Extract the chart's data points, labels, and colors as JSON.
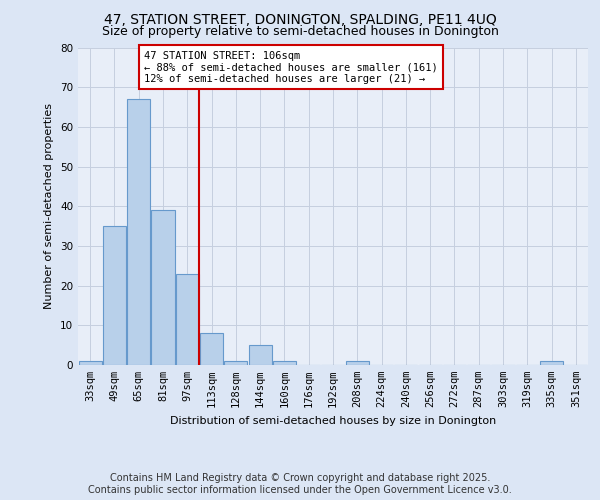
{
  "title1": "47, STATION STREET, DONINGTON, SPALDING, PE11 4UQ",
  "title2": "Size of property relative to semi-detached houses in Donington",
  "xlabel": "Distribution of semi-detached houses by size in Donington",
  "ylabel": "Number of semi-detached properties",
  "annotation_title": "47 STATION STREET: 106sqm",
  "annotation_line1": "← 88% of semi-detached houses are smaller (161)",
  "annotation_line2": "12% of semi-detached houses are larger (21) →",
  "footer1": "Contains HM Land Registry data © Crown copyright and database right 2025.",
  "footer2": "Contains public sector information licensed under the Open Government Licence v3.0.",
  "bin_labels": [
    "33sqm",
    "49sqm",
    "65sqm",
    "81sqm",
    "97sqm",
    "113sqm",
    "128sqm",
    "144sqm",
    "160sqm",
    "176sqm",
    "192sqm",
    "208sqm",
    "224sqm",
    "240sqm",
    "256sqm",
    "272sqm",
    "287sqm",
    "303sqm",
    "319sqm",
    "335sqm",
    "351sqm"
  ],
  "bin_values": [
    1,
    35,
    67,
    39,
    23,
    8,
    1,
    5,
    1,
    0,
    0,
    1,
    0,
    0,
    0,
    0,
    0,
    0,
    0,
    1,
    0
  ],
  "bar_color": "#b8d0ea",
  "bar_edgecolor": "#6699cc",
  "vline_color": "#cc0000",
  "vline_pos": 4.5,
  "background_color": "#dce6f5",
  "plot_bg_color": "#e8eef8",
  "grid_color": "#c5cfdf",
  "ylim": [
    0,
    80
  ],
  "yticks": [
    0,
    10,
    20,
    30,
    40,
    50,
    60,
    70,
    80
  ],
  "annotation_box_color": "#ffffff",
  "annotation_border_color": "#cc0000",
  "title1_fontsize": 10,
  "title2_fontsize": 9,
  "axis_fontsize": 8,
  "tick_fontsize": 7.5,
  "footer_fontsize": 7
}
